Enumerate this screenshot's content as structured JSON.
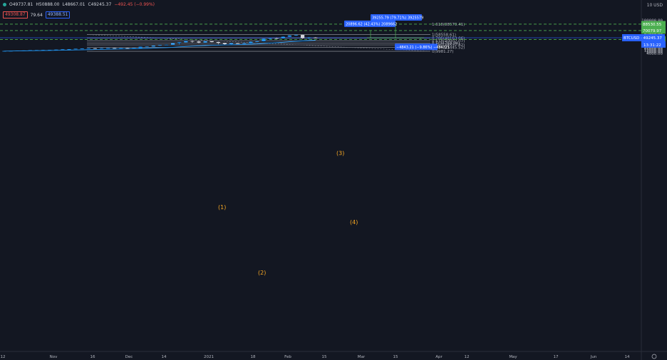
{
  "ohlc": {
    "open": "O49737.81",
    "high": "H50888.00",
    "low": "L48667.01",
    "close": "C49245.37",
    "change": "−492.45 (−0.99%)"
  },
  "indicators": {
    "bid": "49308.87",
    "spread": "79.64",
    "ask": "49388.51"
  },
  "colors": {
    "background": "#131722",
    "up": "#2196f3",
    "down": "#d1d4dc",
    "ma": "#2196f3",
    "fib": "#d1d4dc",
    "target_green": "#4caf50",
    "wave_label": "#f5a623",
    "price_line": "#2962ff"
  },
  "chart_data": {
    "type": "candlestick",
    "symbol": "BTCUSD",
    "currency_label": "10 USD",
    "y_ticks": [
      100000,
      96000,
      92000,
      88000,
      84000,
      80000,
      76000,
      72000,
      68000,
      64000,
      60000,
      56000,
      52000,
      48000,
      44000,
      40000,
      36000,
      32000,
      28000,
      24000,
      20000,
      16000,
      12000,
      8000,
      4000
    ],
    "x_ticks": [
      "12",
      "Nov",
      "16",
      "Dec",
      "14",
      "2021",
      "18",
      "Feb",
      "15",
      "Mar",
      "15",
      "Apr",
      "12",
      "May",
      "17",
      "Jun",
      "14"
    ],
    "price_ohlc": [
      {
        "o": 10900,
        "h": 11300,
        "l": 10500,
        "c": 11000
      },
      {
        "o": 11000,
        "h": 11500,
        "l": 10800,
        "c": 11300
      },
      {
        "o": 11300,
        "h": 12200,
        "l": 11100,
        "c": 12000
      },
      {
        "o": 12000,
        "h": 12600,
        "l": 11800,
        "c": 12400
      },
      {
        "o": 12400,
        "h": 13300,
        "l": 12200,
        "c": 13100
      },
      {
        "o": 13100,
        "h": 13600,
        "l": 12800,
        "c": 13400
      },
      {
        "o": 13400,
        "h": 14200,
        "l": 13100,
        "c": 13800
      },
      {
        "o": 13800,
        "h": 14300,
        "l": 13400,
        "c": 14100
      },
      {
        "o": 14100,
        "h": 15000,
        "l": 13800,
        "c": 14800
      },
      {
        "o": 14800,
        "h": 15900,
        "l": 14600,
        "c": 15600
      },
      {
        "o": 15600,
        "h": 16500,
        "l": 15200,
        "c": 16200
      },
      {
        "o": 16200,
        "h": 17700,
        "l": 15900,
        "c": 17400
      },
      {
        "o": 17400,
        "h": 18600,
        "l": 17000,
        "c": 18300
      },
      {
        "o": 18300,
        "h": 19300,
        "l": 17600,
        "c": 18700
      },
      {
        "o": 18700,
        "h": 19200,
        "l": 16800,
        "c": 17600
      },
      {
        "o": 17600,
        "h": 19600,
        "l": 17300,
        "c": 19200
      },
      {
        "o": 19200,
        "h": 19800,
        "l": 18700,
        "c": 19300
      },
      {
        "o": 19300,
        "h": 19700,
        "l": 18400,
        "c": 18800
      },
      {
        "o": 18800,
        "h": 19500,
        "l": 18200,
        "c": 19100
      },
      {
        "o": 19100,
        "h": 19600,
        "l": 18500,
        "c": 18700
      },
      {
        "o": 18700,
        "h": 19500,
        "l": 18400,
        "c": 19300
      },
      {
        "o": 19300,
        "h": 23800,
        "l": 19100,
        "c": 23300
      },
      {
        "o": 23300,
        "h": 24100,
        "l": 22100,
        "c": 23700
      },
      {
        "o": 23700,
        "h": 26900,
        "l": 23400,
        "c": 26500
      },
      {
        "o": 26500,
        "h": 28500,
        "l": 25900,
        "c": 28200
      },
      {
        "o": 28200,
        "h": 29500,
        "l": 27900,
        "c": 29000
      },
      {
        "o": 29000,
        "h": 34000,
        "l": 28700,
        "c": 33500
      },
      {
        "o": 33500,
        "h": 36600,
        "l": 30000,
        "c": 36000
      },
      {
        "o": 36000,
        "h": 40500,
        "l": 35500,
        "c": 40100
      },
      {
        "o": 40100,
        "h": 41900,
        "l": 34700,
        "c": 38200
      },
      {
        "o": 38200,
        "h": 40100,
        "l": 32500,
        "c": 35500
      },
      {
        "o": 35500,
        "h": 39700,
        "l": 34200,
        "c": 39100
      },
      {
        "o": 39100,
        "h": 39900,
        "l": 35800,
        "c": 36800
      },
      {
        "o": 36800,
        "h": 37800,
        "l": 30400,
        "c": 33700
      },
      {
        "o": 33700,
        "h": 34800,
        "l": 28900,
        "c": 30800
      },
      {
        "o": 30800,
        "h": 34200,
        "l": 30100,
        "c": 33300
      },
      {
        "o": 33300,
        "h": 34900,
        "l": 31800,
        "c": 32100
      },
      {
        "o": 32100,
        "h": 34700,
        "l": 29400,
        "c": 33500
      },
      {
        "o": 33500,
        "h": 38500,
        "l": 32900,
        "c": 37500
      },
      {
        "o": 37500,
        "h": 40800,
        "l": 36700,
        "c": 39000
      },
      {
        "o": 39000,
        "h": 47000,
        "l": 38400,
        "c": 46300
      },
      {
        "o": 46300,
        "h": 48900,
        "l": 43900,
        "c": 47800
      },
      {
        "o": 47800,
        "h": 49800,
        "l": 46000,
        "c": 47600
      },
      {
        "o": 47600,
        "h": 53000,
        "l": 46900,
        "c": 52200
      },
      {
        "o": 52200,
        "h": 56400,
        "l": 51700,
        "c": 55900
      },
      {
        "o": 55900,
        "h": 58352,
        "l": 54800,
        "c": 57500
      },
      {
        "o": 57500,
        "h": 57800,
        "l": 46100,
        "c": 48400
      },
      {
        "o": 48400,
        "h": 51300,
        "l": 44400,
        "c": 49700
      },
      {
        "o": 49737.81,
        "h": 50888.0,
        "l": 48667.01,
        "c": 49245.37
      }
    ],
    "moving_average": [
      10600,
      10800,
      11000,
      11300,
      11600,
      11900,
      12200,
      12500,
      12800,
      13100,
      13500,
      13900,
      14400,
      14800,
      15200,
      15600,
      16000,
      16300,
      16700,
      17000,
      17400,
      17900,
      18500,
      19200,
      20000,
      20800,
      21800,
      22900,
      24000,
      25000,
      25900,
      26700,
      27400,
      28000,
      28500,
      29000,
      29500,
      30000,
      30700,
      31500,
      32600,
      33800,
      35000,
      36300,
      37700,
      39000,
      40100,
      41100,
      42000
    ],
    "fib_levels": [
      {
        "label": "1(58558.61)",
        "value": 58558.61
      },
      {
        "label": "0.786(48163.06)",
        "value": 48163.06
      },
      {
        "label": "0.618(40002.07)",
        "value": 40002.07
      },
      {
        "label": "0.5(34269.94)",
        "value": 34269.94
      },
      {
        "label": "0.382(28537.82)",
        "value": 28537.82
      },
      {
        "label": "0.236(21445.52)",
        "value": 21445.52
      },
      {
        "label": "0(9981.27)",
        "value": 9981.27
      }
    ],
    "extension_label": "1.618(88579.41)",
    "green_levels": [
      {
        "label": "88530.55",
        "value": 88530.55
      },
      {
        "label": "70079.97",
        "value": 70079.97
      },
      {
        "label": "44368.38",
        "value": 44368.38
      }
    ],
    "current_price": {
      "label": "BTCUSD · 49245.37",
      "value": 49245.37,
      "countdown": "13:31:22"
    },
    "measurements": [
      {
        "label": "39255.79 (79.71%) 3925579"
      },
      {
        "label": "20896.62 (42.43%) 2089662"
      },
      {
        "label": "−4843.21 (−9.86%) −484321"
      }
    ],
    "wave_labels": [
      "(1)",
      "(2)",
      "(3)",
      "(4)"
    ]
  }
}
